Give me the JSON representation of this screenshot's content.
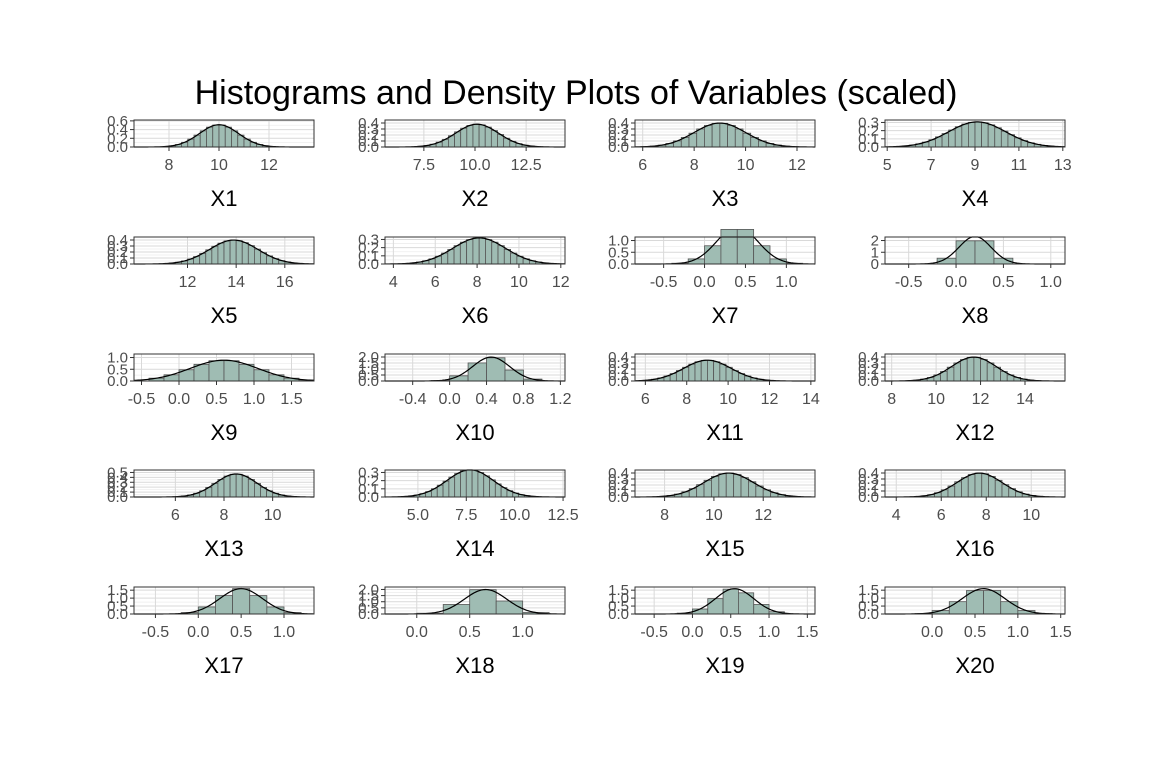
{
  "title": "Histograms and Density Plots of Variables (scaled)",
  "colors": {
    "bar_fill": "#9fbcb3",
    "bar_stroke": "#555555",
    "line": "#000000",
    "grid_major": "#d9d9d9",
    "grid_minor": "#ededed",
    "panel_border": "#333333"
  },
  "chart_data": [
    {
      "type": "histogram+density",
      "xlabel": "X1",
      "xlim": [
        6.6,
        13.8
      ],
      "xticks": [
        8,
        10,
        12
      ],
      "yticks": [
        "0.0",
        "0.2",
        "0.4",
        "0.6"
      ],
      "ylim": [
        0,
        0.62
      ],
      "mean": 10.0,
      "sd": 0.78,
      "bin_width": 0.25
    },
    {
      "type": "histogram+density",
      "xlabel": "X2",
      "xlim": [
        5.6,
        14.4
      ],
      "xticks": [
        "7.5",
        "10.0",
        "12.5"
      ],
      "yticks": [
        "0.0",
        "0.1",
        "0.2",
        "0.3",
        "0.4"
      ],
      "ylim": [
        0,
        0.45
      ],
      "mean": 10.1,
      "sd": 1.05,
      "bin_width": 0.3
    },
    {
      "type": "histogram+density",
      "xlabel": "X3",
      "xlim": [
        5.7,
        12.7
      ],
      "xticks": [
        6,
        8,
        10,
        12
      ],
      "yticks": [
        "0.0",
        "0.1",
        "0.2",
        "0.3",
        "0.4"
      ],
      "ylim": [
        0,
        0.45
      ],
      "mean": 9.0,
      "sd": 1.0,
      "bin_width": 0.3
    },
    {
      "type": "histogram+density",
      "xlabel": "X4",
      "xlim": [
        4.9,
        13.1
      ],
      "xticks": [
        5,
        7,
        9,
        11,
        13
      ],
      "yticks": [
        "0.0",
        "0.1",
        "0.2",
        "0.3"
      ],
      "ylim": [
        0,
        0.33
      ],
      "mean": 9.1,
      "sd": 1.3,
      "bin_width": 0.3
    },
    {
      "type": "histogram+density",
      "xlabel": "X5",
      "xlim": [
        9.8,
        17.2
      ],
      "xticks": [
        12,
        14,
        16
      ],
      "yticks": [
        "0.0",
        "0.1",
        "0.2",
        "0.3",
        "0.4"
      ],
      "ylim": [
        0,
        0.45
      ],
      "mean": 13.9,
      "sd": 1.0,
      "bin_width": 0.25
    },
    {
      "type": "histogram+density",
      "xlabel": "X6",
      "xlim": [
        3.6,
        12.2
      ],
      "xticks": [
        4,
        6,
        8,
        10,
        12
      ],
      "yticks": [
        "0.0",
        "0.1",
        "0.2",
        "0.3"
      ],
      "ylim": [
        0,
        0.33
      ],
      "mean": 8.1,
      "sd": 1.25,
      "bin_width": 0.3
    },
    {
      "type": "histogram+density",
      "xlabel": "X7",
      "xlim": [
        -0.85,
        1.35
      ],
      "xticks": [
        "-0.5",
        "0.0",
        "0.5",
        "1.0"
      ],
      "yticks": [
        "0.0",
        "0.5",
        "1.0"
      ],
      "ylim": [
        0,
        1.15
      ],
      "mean": 0.4,
      "sd": 0.25,
      "bin_width": 0.2
    },
    {
      "type": "histogram+density",
      "xlabel": "X8",
      "xlim": [
        -0.75,
        1.15
      ],
      "xticks": [
        "-0.5",
        "0.0",
        "0.5",
        "1.0"
      ],
      "yticks": [
        "0",
        "1",
        "2"
      ],
      "ylim": [
        0,
        2.3
      ],
      "mean": 0.2,
      "sd": 0.17,
      "bin_width": 0.2
    },
    {
      "type": "histogram+density",
      "xlabel": "X9",
      "xlim": [
        -0.6,
        1.8
      ],
      "xticks": [
        "-0.5",
        "0.0",
        "0.5",
        "1.0",
        "1.5"
      ],
      "yticks": [
        "0.0",
        "0.5",
        "1.0"
      ],
      "ylim": [
        0,
        1.15
      ],
      "mean": 0.6,
      "sd": 0.45,
      "bin_width": 0.2
    },
    {
      "type": "histogram+density",
      "xlabel": "X10",
      "xlim": [
        -0.7,
        1.25
      ],
      "xticks": [
        "-0.4",
        "0.0",
        "0.4",
        "0.8",
        "1.2"
      ],
      "yticks": [
        "0.0",
        "0.5",
        "1.0",
        "1.5",
        "2.0"
      ],
      "ylim": [
        0,
        2.25
      ],
      "mean": 0.45,
      "sd": 0.2,
      "bin_width": 0.2
    },
    {
      "type": "histogram+density",
      "xlabel": "X11",
      "xlim": [
        5.5,
        14.2
      ],
      "xticks": [
        6,
        8,
        10,
        12,
        14
      ],
      "yticks": [
        "0.0",
        "0.1",
        "0.2",
        "0.3",
        "0.4"
      ],
      "ylim": [
        0,
        0.45
      ],
      "mean": 9.0,
      "sd": 1.15,
      "bin_width": 0.3
    },
    {
      "type": "histogram+density",
      "xlabel": "X12",
      "xlim": [
        7.7,
        15.8
      ],
      "xticks": [
        8,
        10,
        12,
        14
      ],
      "yticks": [
        "0.0",
        "0.1",
        "0.2",
        "0.3",
        "0.4"
      ],
      "ylim": [
        0,
        0.45
      ],
      "mean": 11.7,
      "sd": 1.0,
      "bin_width": 0.3
    },
    {
      "type": "histogram+density",
      "xlabel": "X13",
      "xlim": [
        4.3,
        11.7
      ],
      "xticks": [
        6,
        8,
        10
      ],
      "yticks": [
        "0.0",
        "0.1",
        "0.2",
        "0.3",
        "0.4",
        "0.5"
      ],
      "ylim": [
        0,
        0.55
      ],
      "mean": 8.5,
      "sd": 0.85,
      "bin_width": 0.25
    },
    {
      "type": "histogram+density",
      "xlabel": "X14",
      "xlim": [
        3.3,
        12.6
      ],
      "xticks": [
        "5.0",
        "7.5",
        "10.0",
        "12.5"
      ],
      "yticks": [
        "0.0",
        "0.1",
        "0.2",
        "0.3"
      ],
      "ylim": [
        0,
        0.33
      ],
      "mean": 7.7,
      "sd": 1.2,
      "bin_width": 0.3
    },
    {
      "type": "histogram+density",
      "xlabel": "X15",
      "xlim": [
        6.8,
        14.1
      ],
      "xticks": [
        8,
        10,
        12
      ],
      "yticks": [
        "0.0",
        "0.1",
        "0.2",
        "0.3",
        "0.4"
      ],
      "ylim": [
        0,
        0.45
      ],
      "mean": 10.6,
      "sd": 1.0,
      "bin_width": 0.3
    },
    {
      "type": "histogram+density",
      "xlabel": "X16",
      "xlim": [
        3.5,
        11.5
      ],
      "xticks": [
        4,
        6,
        8,
        10
      ],
      "yticks": [
        "0.0",
        "0.1",
        "0.2",
        "0.3",
        "0.4"
      ],
      "ylim": [
        0,
        0.45
      ],
      "mean": 7.7,
      "sd": 1.0,
      "bin_width": 0.3
    },
    {
      "type": "histogram+density",
      "xlabel": "X17",
      "xlim": [
        -0.75,
        1.35
      ],
      "xticks": [
        "-0.5",
        "0.0",
        "0.5",
        "1.0"
      ],
      "yticks": [
        "0.0",
        "0.5",
        "1.0",
        "1.5"
      ],
      "ylim": [
        0,
        1.7
      ],
      "mean": 0.5,
      "sd": 0.25,
      "bin_width": 0.2
    },
    {
      "type": "histogram+density",
      "xlabel": "X18",
      "xlim": [
        -0.3,
        1.4
      ],
      "xticks": [
        "0.0",
        "0.5",
        "1.0"
      ],
      "yticks": [
        "0.0",
        "0.5",
        "1.0",
        "1.5",
        "2.0"
      ],
      "ylim": [
        0,
        2.2
      ],
      "mean": 0.65,
      "sd": 0.2,
      "bin_width": 0.25
    },
    {
      "type": "histogram+density",
      "xlabel": "X19",
      "xlim": [
        -0.75,
        1.6
      ],
      "xticks": [
        "-0.5",
        "0.0",
        "0.5",
        "1.0",
        "1.5"
      ],
      "yticks": [
        "0.0",
        "0.5",
        "1.0",
        "1.5"
      ],
      "ylim": [
        0,
        1.7
      ],
      "mean": 0.55,
      "sd": 0.25,
      "bin_width": 0.2
    },
    {
      "type": "histogram+density",
      "xlabel": "X20",
      "xlim": [
        -0.55,
        1.55
      ],
      "xticks": [
        "0.0",
        "0.5",
        "1.0",
        "1.5"
      ],
      "yticks": [
        "0.0",
        "0.5",
        "1.0",
        "1.5"
      ],
      "ylim": [
        0,
        1.7
      ],
      "mean": 0.6,
      "sd": 0.25,
      "bin_width": 0.2
    }
  ]
}
